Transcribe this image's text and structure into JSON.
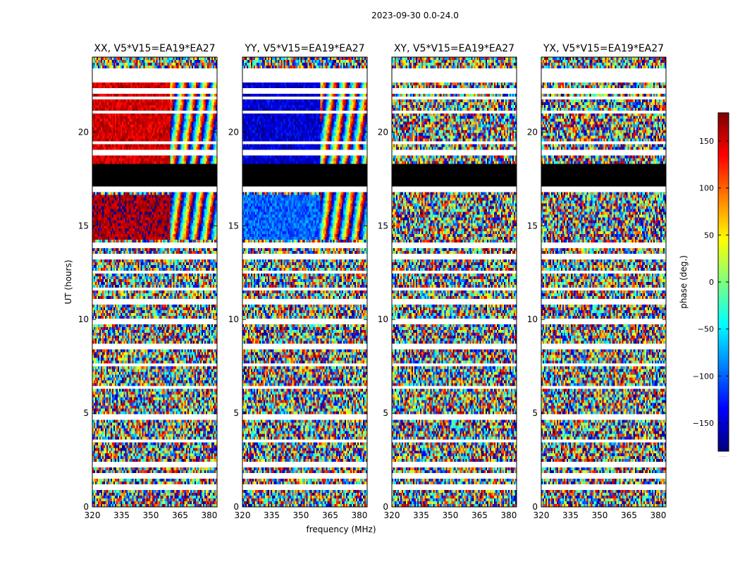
{
  "figure": {
    "title": "2023-09-30 0.0-24.0",
    "ylabel": "UT (hours)",
    "xlabel": "frequency (MHz)"
  },
  "chart_data": {
    "type": "heatmap",
    "colormap": "jet",
    "x_ticks": [
      320,
      335,
      350,
      365,
      380
    ],
    "x_range": [
      320,
      384
    ],
    "y_ticks": [
      0,
      5,
      10,
      15,
      20
    ],
    "y_range": [
      0,
      24
    ],
    "panels": [
      {
        "title": "XX, V5*V15=EA19*EA27",
        "base_phase": 150,
        "quiet_phase": 165,
        "late_hue": 150,
        "scatter": 25
      },
      {
        "title": "YY, V5*V15=EA19*EA27",
        "base_phase": -150,
        "quiet_phase": -100,
        "late_hue": -140,
        "scatter": 30
      },
      {
        "title": "XY, V5*V15=EA19*EA27",
        "base_phase": null,
        "quiet_phase": null,
        "late_hue": 120,
        "scatter": 180
      },
      {
        "title": "YX, V5*V15=EA19*EA27",
        "base_phase": null,
        "quiet_phase": null,
        "late_hue": 20,
        "scatter": 180
      }
    ],
    "flagged_bands_hours": [
      [
        0.9,
        1.1
      ],
      [
        1.55,
        1.75
      ],
      [
        2.15,
        2.3
      ],
      [
        3.5,
        3.6
      ],
      [
        4.7,
        4.85
      ],
      [
        6.3,
        6.45
      ],
      [
        7.5,
        7.65
      ],
      [
        8.5,
        8.6
      ],
      [
        9.8,
        9.95
      ],
      [
        10.8,
        11.0
      ],
      [
        11.55,
        11.65
      ],
      [
        12.5,
        12.6
      ],
      [
        13.3,
        13.45
      ],
      [
        13.9,
        14.1
      ],
      [
        16.9,
        17.05
      ],
      [
        17.8,
        17.9
      ],
      [
        18.9,
        19.0
      ],
      [
        19.4,
        19.5
      ],
      [
        21.05,
        21.15
      ],
      [
        21.75,
        21.85
      ],
      [
        22.2,
        22.3
      ],
      [
        22.7,
        23.4
      ]
    ],
    "colorbar": {
      "label": "phase (deg.)",
      "ticks": [
        150,
        100,
        50,
        0,
        -50,
        -100,
        -150
      ],
      "tick_labels": [
        "150",
        "100",
        "50",
        "0",
        "−50",
        "−100",
        "−150"
      ],
      "range": [
        -180,
        180
      ],
      "footnote": "......"
    }
  }
}
